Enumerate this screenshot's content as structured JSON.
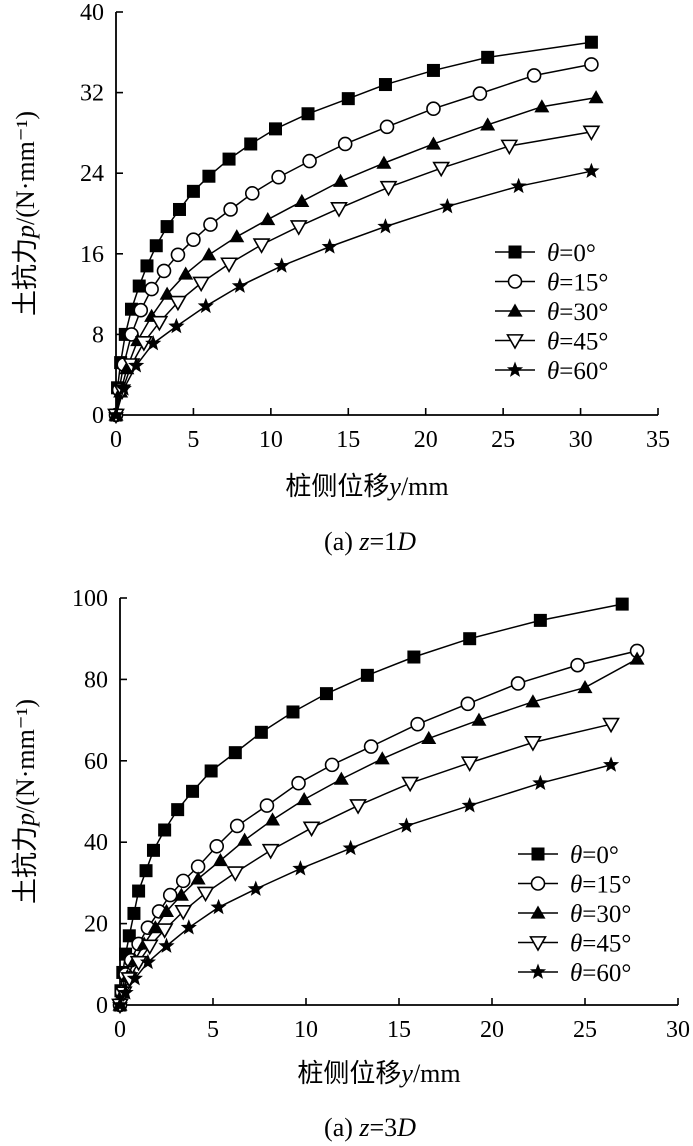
{
  "chart_data": [
    {
      "type": "line",
      "caption": "(a) z=1D",
      "xlabel": "桩侧位移y/mm",
      "ylabel": "土抗力p/(N·mm⁻¹)",
      "xlim": [
        0,
        35
      ],
      "ylim": [
        0,
        40
      ],
      "xticks": [
        0,
        5,
        10,
        15,
        20,
        25,
        30,
        35
      ],
      "yticks": [
        0,
        8,
        16,
        24,
        32,
        40
      ],
      "legend_position": "center-right",
      "series": [
        {
          "name": "θ=0°",
          "marker": "filled-square",
          "x": [
            0,
            0.1,
            0.3,
            0.6,
            1.0,
            1.5,
            2.0,
            2.6,
            3.3,
            4.1,
            5.0,
            6.0,
            7.3,
            8.7,
            10.3,
            12.4,
            15.0,
            17.4,
            20.5,
            24.0,
            30.7
          ],
          "y": [
            0,
            2.7,
            5.2,
            8.0,
            10.5,
            12.8,
            14.8,
            16.8,
            18.7,
            20.4,
            22.2,
            23.7,
            25.4,
            26.9,
            28.4,
            29.9,
            31.4,
            32.8,
            34.2,
            35.5,
            37.0
          ]
        },
        {
          "name": "θ=15°",
          "marker": "open-circle",
          "x": [
            0,
            0.2,
            0.5,
            1.0,
            1.6,
            2.3,
            3.1,
            4.0,
            5.0,
            6.1,
            7.4,
            8.8,
            10.5,
            12.5,
            14.8,
            17.5,
            20.5,
            23.5,
            27.0,
            30.7
          ],
          "y": [
            0,
            2.5,
            5.0,
            8.0,
            10.4,
            12.5,
            14.3,
            15.9,
            17.4,
            18.9,
            20.4,
            22.0,
            23.6,
            25.2,
            26.9,
            28.6,
            30.4,
            31.9,
            33.7,
            34.8
          ]
        },
        {
          "name": "θ=30°",
          "marker": "filled-triangle-up",
          "x": [
            0,
            0.3,
            0.7,
            1.4,
            2.3,
            3.3,
            4.5,
            6.0,
            7.8,
            9.8,
            12.0,
            14.5,
            17.3,
            20.5,
            24.0,
            27.5,
            31.0
          ],
          "y": [
            0,
            2.3,
            4.6,
            7.4,
            9.8,
            12.0,
            14.0,
            15.9,
            17.7,
            19.4,
            21.2,
            23.2,
            25.0,
            26.9,
            28.8,
            30.6,
            31.5
          ]
        },
        {
          "name": "θ=45°",
          "marker": "open-triangle-down",
          "x": [
            0,
            0.4,
            1.0,
            1.8,
            2.8,
            4.0,
            5.5,
            7.3,
            9.4,
            11.8,
            14.4,
            17.6,
            21.0,
            25.4,
            30.7
          ],
          "y": [
            0,
            2.4,
            5.0,
            7.2,
            9.2,
            11.2,
            13.1,
            15.0,
            16.9,
            18.7,
            20.5,
            22.6,
            24.5,
            26.7,
            28.1
          ]
        },
        {
          "name": "θ=60°",
          "marker": "filled-star",
          "x": [
            0,
            0.5,
            1.3,
            2.4,
            3.9,
            5.8,
            8.0,
            10.7,
            13.8,
            17.4,
            21.4,
            26.0,
            30.7
          ],
          "y": [
            0,
            2.6,
            4.9,
            7.1,
            8.8,
            10.8,
            12.8,
            14.8,
            16.7,
            18.7,
            20.7,
            22.7,
            24.2
          ]
        }
      ]
    },
    {
      "type": "line",
      "caption": "(a) z=3D",
      "xlabel": "桩侧位移y/mm",
      "ylabel": "土抗力p/(N·mm⁻¹)",
      "xlim": [
        0,
        30
      ],
      "ylim": [
        0,
        100
      ],
      "xticks": [
        0,
        5,
        10,
        15,
        20,
        25,
        30
      ],
      "yticks": [
        0,
        20,
        40,
        60,
        80,
        100
      ],
      "legend_position": "center-right",
      "series": [
        {
          "name": "θ=0°",
          "marker": "filled-square",
          "x": [
            0,
            0.05,
            0.15,
            0.3,
            0.5,
            0.75,
            1.0,
            1.4,
            1.8,
            2.4,
            3.1,
            3.9,
            4.9,
            6.2,
            7.6,
            9.3,
            11.1,
            13.3,
            15.8,
            18.8,
            22.6,
            27.0
          ],
          "y": [
            0,
            3.5,
            8.0,
            12.5,
            17.0,
            22.5,
            28.0,
            33.0,
            38.0,
            43.0,
            48.0,
            52.5,
            57.5,
            62.0,
            67.0,
            72.0,
            76.5,
            81.0,
            85.5,
            90.0,
            94.5,
            98.5
          ],
          "values_note": ""
        },
        {
          "name": "θ=15°",
          "marker": "open-circle",
          "x": [
            0,
            0.1,
            0.3,
            0.6,
            1.0,
            1.5,
            2.1,
            2.7,
            3.4,
            4.2,
            5.2,
            6.3,
            7.9,
            9.6,
            11.4,
            13.5,
            16.0,
            18.7,
            21.4,
            24.6,
            27.8
          ],
          "y": [
            0,
            3.2,
            7.5,
            11.0,
            15.0,
            19.0,
            23.0,
            27.0,
            30.5,
            34.0,
            39.0,
            44.0,
            49.0,
            54.5,
            59.0,
            63.5,
            69.0,
            74.0,
            79.0,
            83.5,
            87.0
          ],
          "values_note": ""
        },
        {
          "name": "θ=30°",
          "marker": "filled-triangle-up",
          "x": [
            0,
            0.15,
            0.4,
            0.8,
            1.3,
            1.9,
            2.5,
            3.3,
            4.2,
            5.4,
            6.7,
            8.2,
            9.9,
            11.9,
            14.1,
            16.6,
            19.3,
            22.2,
            25.0,
            27.8
          ],
          "y": [
            0,
            3.0,
            7.0,
            11.0,
            15.0,
            19.0,
            23.0,
            27.0,
            31.0,
            35.5,
            40.5,
            45.5,
            50.5,
            55.5,
            60.5,
            65.5,
            70.0,
            74.5,
            78.0,
            85.0
          ],
          "values_note": ""
        },
        {
          "name": "θ=45°",
          "marker": "open-triangle-down",
          "x": [
            0,
            0.2,
            0.5,
            1.0,
            1.6,
            2.4,
            3.4,
            4.6,
            6.2,
            8.1,
            10.3,
            12.8,
            15.6,
            18.8,
            22.2,
            26.4
          ],
          "y": [
            0,
            3.0,
            6.5,
            10.5,
            14.5,
            18.5,
            23.0,
            27.5,
            32.5,
            38.0,
            43.5,
            49.0,
            54.5,
            59.5,
            64.5,
            69.0
          ],
          "values_note": ""
        },
        {
          "name": "θ=60°",
          "marker": "filled-star",
          "x": [
            0,
            0.3,
            0.8,
            1.5,
            2.5,
            3.7,
            5.3,
            7.3,
            9.7,
            12.4,
            15.4,
            18.8,
            22.6,
            26.4
          ],
          "y": [
            0,
            3.0,
            6.5,
            10.5,
            14.5,
            19.0,
            24.0,
            28.5,
            33.5,
            38.5,
            44.0,
            49.0,
            54.5,
            59.0
          ],
          "values_note": ""
        }
      ]
    }
  ]
}
